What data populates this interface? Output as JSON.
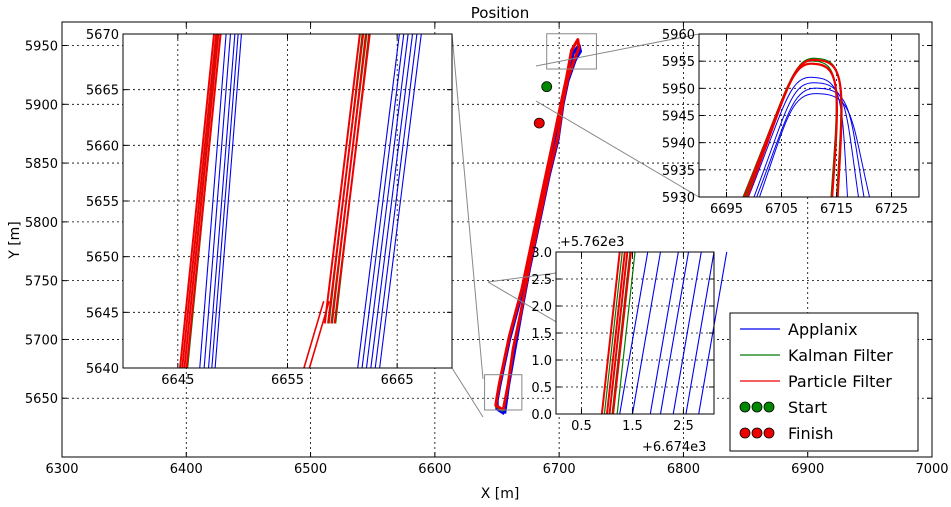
{
  "colors": {
    "applanix": "#0000ee",
    "kalman": "#007a00",
    "particle": "#ee0000",
    "start": "#008800",
    "finish": "#ee0000",
    "connector": "#888888"
  },
  "chart_data": [
    {
      "panel": "main",
      "type": "line",
      "title": "Position",
      "xlabel": "X [m]",
      "ylabel": "Y [m]",
      "xlim": [
        6300,
        7000
      ],
      "ylim": [
        5600,
        5970
      ],
      "xticks": [
        6300,
        6400,
        6500,
        6600,
        6700,
        6800,
        6900,
        7000
      ],
      "xtick_labels": [
        "6300",
        "6400",
        "6500",
        "6600",
        "6700",
        "6800",
        "6900",
        "7000"
      ],
      "yticks": [
        5650,
        5700,
        5750,
        5800,
        5850,
        5900,
        5950
      ],
      "ytick_labels": [
        "5650",
        "5700",
        "5750",
        "5800",
        "5850",
        "5900",
        "5950"
      ],
      "grid": true,
      "legend_position": "lower-right",
      "legend": [
        {
          "label": "Applanix",
          "kind": "line",
          "color": "#0000ee"
        },
        {
          "label": "Kalman Filter",
          "kind": "line",
          "color": "#007a00"
        },
        {
          "label": "Particle Filter",
          "kind": "line",
          "color": "#ee0000"
        },
        {
          "label": "Start",
          "kind": "marker",
          "color": "#008800"
        },
        {
          "label": "Finish",
          "kind": "marker",
          "color": "#ee0000"
        }
      ],
      "series": [
        {
          "name": "Applanix",
          "color": "#0000ee",
          "x": [
            6656,
            6650,
            6650,
            6652,
            6660,
            6670,
            6678,
            6686,
            6694,
            6700,
            6706,
            6711,
            6716,
            6717,
            6713,
            6707,
            6703,
            6699,
            6692,
            6684,
            6676,
            6669,
            6664,
            6659,
            6656
          ],
          "y": [
            5637,
            5641,
            5648,
            5660,
            5700,
            5740,
            5780,
            5820,
            5860,
            5890,
            5920,
            5943,
            5950,
            5945,
            5938,
            5920,
            5900,
            5870,
            5840,
            5800,
            5760,
            5720,
            5690,
            5660,
            5637
          ]
        },
        {
          "name": "Kalman Filter",
          "color": "#007a00",
          "x": [
            6655,
            6649,
            6650,
            6652,
            6660,
            6670,
            6678,
            6686,
            6694,
            6700,
            6706,
            6710,
            6715,
            6716,
            6713,
            6707,
            6703,
            6699,
            6692,
            6684,
            6676,
            6669,
            6663,
            6659,
            6655
          ],
          "y": [
            5639,
            5643,
            5650,
            5662,
            5702,
            5742,
            5782,
            5822,
            5862,
            5892,
            5922,
            5945,
            5955,
            5948,
            5940,
            5922,
            5902,
            5872,
            5842,
            5802,
            5762,
            5722,
            5692,
            5662,
            5639
          ]
        },
        {
          "name": "Particle Filter",
          "color": "#ee0000",
          "x": [
            6655,
            6649,
            6650,
            6652,
            6660,
            6670,
            6678,
            6686,
            6694,
            6700,
            6706,
            6710,
            6715,
            6716,
            6713,
            6707,
            6703,
            6699,
            6692,
            6684,
            6676,
            6669,
            6663,
            6659,
            6655
          ],
          "y": [
            5640,
            5644,
            5651,
            5663,
            5703,
            5743,
            5783,
            5823,
            5863,
            5893,
            5923,
            5946,
            5955,
            5948,
            5940,
            5922,
            5902,
            5872,
            5842,
            5802,
            5762,
            5722,
            5692,
            5662,
            5640
          ]
        }
      ],
      "points": [
        {
          "name": "Start",
          "x": 6690,
          "y": 5915,
          "color": "#008800"
        },
        {
          "name": "Finish",
          "x": 6684,
          "y": 5884,
          "color": "#ee0000"
        }
      ]
    },
    {
      "panel": "inset-left",
      "type": "line",
      "xlim": [
        6640,
        6670
      ],
      "ylim": [
        5640,
        5670
      ],
      "xticks": [
        6645,
        6655,
        6665
      ],
      "xtick_labels": [
        "6645",
        "6655",
        "6665"
      ],
      "yticks": [
        5640,
        5645,
        5650,
        5655,
        5660,
        5665,
        5670
      ],
      "ytick_labels": [
        "5640",
        "5645",
        "5650",
        "5655",
        "5660",
        "5665",
        "5670"
      ],
      "grid": true
    },
    {
      "panel": "inset-top-right",
      "type": "line",
      "xlim": [
        6690,
        6730
      ],
      "ylim": [
        5930,
        5960
      ],
      "xticks": [
        6695,
        6705,
        6715,
        6725
      ],
      "xtick_labels": [
        "6695",
        "6705",
        "6715",
        "6725"
      ],
      "yticks": [
        5930,
        5935,
        5940,
        5945,
        5950,
        5955,
        5960
      ],
      "ytick_labels": [
        "5930",
        "5935",
        "5940",
        "5945",
        "5950",
        "5955",
        "5960"
      ],
      "grid": true
    },
    {
      "panel": "inset-middle-right",
      "type": "line",
      "xlim": [
        0,
        3.1
      ],
      "ylim": [
        0,
        3.0
      ],
      "xticks": [
        0.5,
        1.5,
        2.5
      ],
      "xtick_labels": [
        "0.5",
        "1.5",
        "2.5"
      ],
      "yticks": [
        0.0,
        0.5,
        1.0,
        1.5,
        2.0,
        2.5,
        3.0
      ],
      "ytick_labels": [
        "0.0",
        "0.5",
        "1.0",
        "1.5",
        "2.0",
        "2.5",
        "3.0"
      ],
      "x_offset_label": "+6.674e3",
      "y_offset_label": "+5.762e3",
      "grid": true
    }
  ]
}
